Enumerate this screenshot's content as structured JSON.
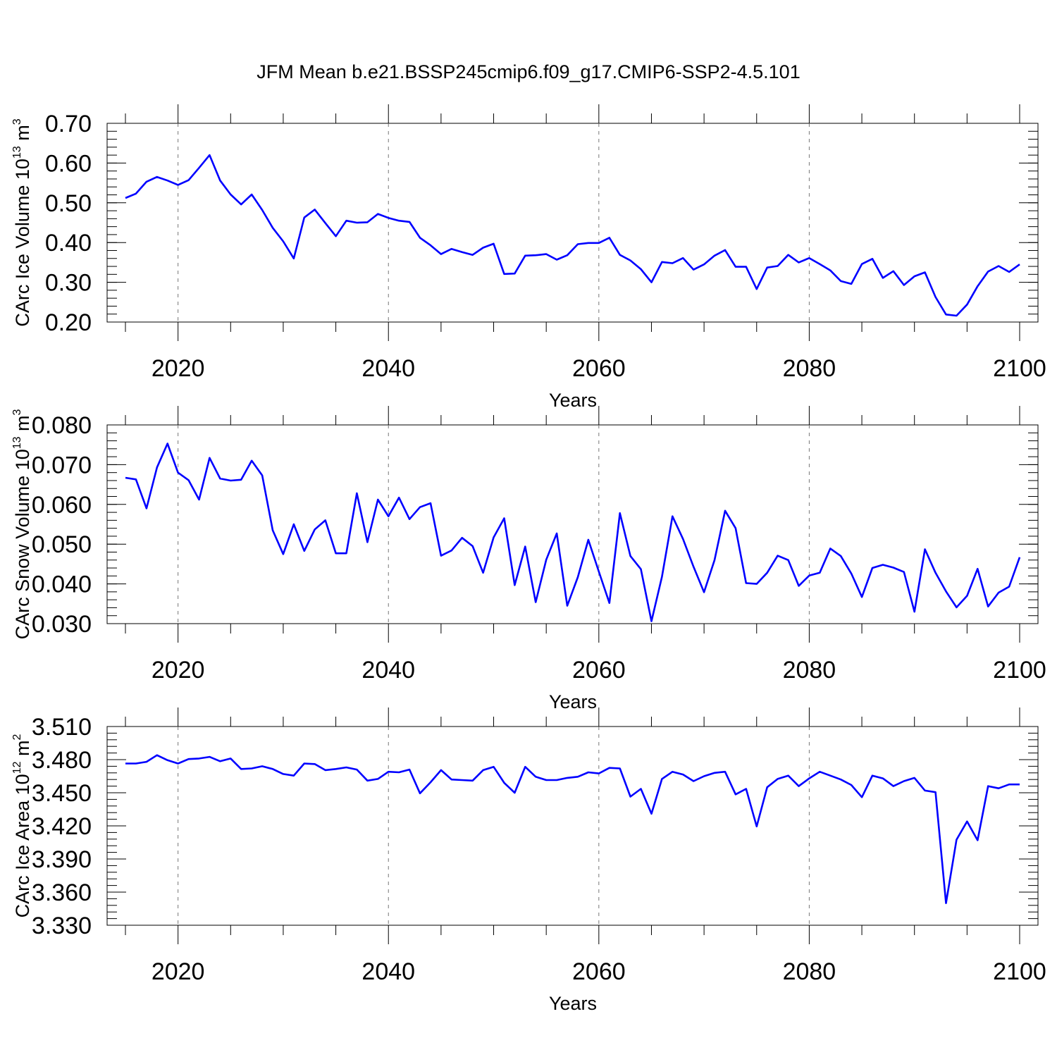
{
  "chart_data": {
    "title": "JFM Mean b.e21.BSSP245cmip6.f09_g17.CMIP6-SSP2-4.5.101",
    "line_color": "#0000ff",
    "x_years": [
      2015,
      2016,
      2017,
      2018,
      2019,
      2020,
      2021,
      2022,
      2023,
      2024,
      2025,
      2026,
      2027,
      2028,
      2029,
      2030,
      2031,
      2032,
      2033,
      2034,
      2035,
      2036,
      2037,
      2038,
      2039,
      2040,
      2041,
      2042,
      2043,
      2044,
      2045,
      2046,
      2047,
      2048,
      2049,
      2050,
      2051,
      2052,
      2053,
      2054,
      2055,
      2056,
      2057,
      2058,
      2059,
      2060,
      2061,
      2062,
      2063,
      2064,
      2065,
      2066,
      2067,
      2068,
      2069,
      2070,
      2071,
      2072,
      2073,
      2074,
      2075,
      2076,
      2077,
      2078,
      2079,
      2080,
      2081,
      2082,
      2083,
      2084,
      2085,
      2086,
      2087,
      2088,
      2089,
      2090,
      2091,
      2092,
      2093,
      2094,
      2095,
      2096,
      2097,
      2098,
      2099,
      2100
    ],
    "panels": [
      {
        "type": "line",
        "ylabel_main": "CArc Ice Volume 10",
        "ylabel_exp1": "13",
        "ylabel_unit": " m",
        "ylabel_exp2": "3",
        "xlabel": "Years",
        "xlim": [
          2015,
          2100
        ],
        "ylim": [
          0.2,
          0.7
        ],
        "yticks": [
          "0.20",
          "0.30",
          "0.40",
          "0.50",
          "0.60",
          "0.70"
        ],
        "xticks": [
          "2020",
          "2040",
          "2060",
          "2080",
          "2100"
        ],
        "values": [
          0.512,
          0.523,
          0.553,
          0.565,
          0.556,
          0.545,
          0.557,
          0.588,
          0.62,
          0.556,
          0.521,
          0.496,
          0.521,
          0.482,
          0.437,
          0.403,
          0.36,
          0.463,
          0.483,
          0.449,
          0.416,
          0.455,
          0.45,
          0.451,
          0.472,
          0.462,
          0.455,
          0.452,
          0.412,
          0.393,
          0.371,
          0.384,
          0.376,
          0.369,
          0.387,
          0.397,
          0.321,
          0.322,
          0.367,
          0.368,
          0.371,
          0.357,
          0.368,
          0.396,
          0.399,
          0.399,
          0.412,
          0.369,
          0.355,
          0.333,
          0.3,
          0.351,
          0.348,
          0.361,
          0.332,
          0.345,
          0.367,
          0.381,
          0.339,
          0.339,
          0.283,
          0.337,
          0.341,
          0.369,
          0.35,
          0.361,
          0.346,
          0.33,
          0.303,
          0.296,
          0.346,
          0.359,
          0.311,
          0.328,
          0.293,
          0.315,
          0.325,
          0.263,
          0.219,
          0.216,
          0.244,
          0.29,
          0.327,
          0.341,
          0.326,
          0.345
        ]
      },
      {
        "type": "line",
        "ylabel_main": "CArc Snow Volume 10",
        "ylabel_exp1": "13",
        "ylabel_unit": " m",
        "ylabel_exp2": "3",
        "xlabel": "Years",
        "xlim": [
          2015,
          2100
        ],
        "ylim": [
          0.03,
          0.08
        ],
        "yticks": [
          "0.030",
          "0.040",
          "0.050",
          "0.060",
          "0.070",
          "0.080"
        ],
        "xticks": [
          "2020",
          "2040",
          "2060",
          "2080",
          "2100"
        ],
        "values": [
          0.0667,
          0.0663,
          0.059,
          0.0693,
          0.0753,
          0.068,
          0.0661,
          0.0612,
          0.0717,
          0.0665,
          0.066,
          0.0662,
          0.071,
          0.0673,
          0.0535,
          0.0475,
          0.055,
          0.0483,
          0.0537,
          0.056,
          0.0477,
          0.0477,
          0.0628,
          0.0505,
          0.0612,
          0.057,
          0.0617,
          0.0563,
          0.0593,
          0.0603,
          0.0471,
          0.0484,
          0.0516,
          0.0495,
          0.0428,
          0.0517,
          0.0565,
          0.0397,
          0.0494,
          0.0354,
          0.0461,
          0.0527,
          0.0345,
          0.0417,
          0.0511,
          0.0431,
          0.0352,
          0.0578,
          0.047,
          0.0437,
          0.0306,
          0.0418,
          0.057,
          0.0513,
          0.0443,
          0.0379,
          0.046,
          0.0584,
          0.054,
          0.0402,
          0.04,
          0.0428,
          0.0471,
          0.046,
          0.0395,
          0.0421,
          0.0428,
          0.0489,
          0.047,
          0.0426,
          0.0367,
          0.044,
          0.0448,
          0.0441,
          0.043,
          0.033,
          0.0487,
          0.0428,
          0.0381,
          0.0341,
          0.037,
          0.0438,
          0.0343,
          0.0378,
          0.0393,
          0.0467
        ]
      },
      {
        "type": "line",
        "ylabel_main": "CArc Ice Area 10",
        "ylabel_exp1": "12",
        "ylabel_unit": " m",
        "ylabel_exp2": "2",
        "xlabel": "Years",
        "xlim": [
          2015,
          2100
        ],
        "ylim": [
          3.33,
          3.51
        ],
        "yticks": [
          "3.330",
          "3.360",
          "3.390",
          "3.420",
          "3.450",
          "3.480",
          "3.510"
        ],
        "xticks": [
          "2020",
          "2040",
          "2060",
          "2080",
          "2100"
        ],
        "values": [
          3.4765,
          3.4765,
          3.478,
          3.484,
          3.4795,
          3.4765,
          3.4805,
          3.481,
          3.4825,
          3.4785,
          3.481,
          3.4715,
          3.472,
          3.474,
          3.4715,
          3.467,
          3.4655,
          3.4765,
          3.476,
          3.4705,
          3.4715,
          3.473,
          3.471,
          3.461,
          3.4625,
          3.469,
          3.4685,
          3.471,
          3.4495,
          3.4595,
          3.4705,
          3.462,
          3.4615,
          3.461,
          3.4705,
          3.4735,
          3.459,
          3.45,
          3.4735,
          3.4645,
          3.4615,
          3.4615,
          3.4635,
          3.4645,
          3.4685,
          3.4675,
          3.4725,
          3.472,
          3.4465,
          3.4535,
          3.431,
          3.4625,
          3.469,
          3.4665,
          3.4605,
          3.465,
          3.468,
          3.469,
          3.4485,
          3.4535,
          3.4195,
          3.455,
          3.4625,
          3.4655,
          3.456,
          3.463,
          3.469,
          3.4655,
          3.462,
          3.457,
          3.446,
          3.4655,
          3.463,
          3.456,
          3.4605,
          3.4635,
          3.452,
          3.4505,
          3.35,
          3.4075,
          3.424,
          3.407,
          3.456,
          3.454,
          3.4575,
          3.4575
        ]
      }
    ]
  }
}
